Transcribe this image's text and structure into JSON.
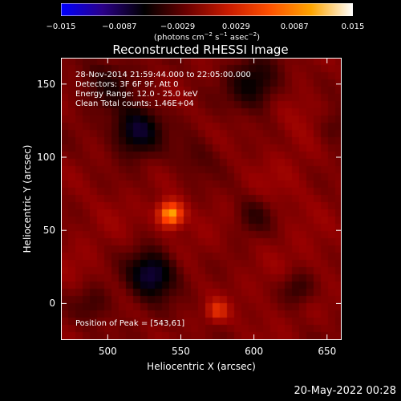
{
  "chart_data": {
    "type": "heatmap",
    "title": "Reconstructed RHESSI Image",
    "xlabel": "Heliocentric X (arcsec)",
    "ylabel": "Heliocentric Y (arcsec)",
    "xlim": [
      468,
      660
    ],
    "ylim": [
      -25,
      168
    ],
    "xticks": [
      500,
      550,
      600,
      650
    ],
    "yticks": [
      0,
      50,
      100,
      150
    ],
    "colorbar": {
      "ticks": [
        "−0.015",
        "−0.0087",
        "−0.0029",
        "0.0029",
        "0.0087",
        "0.015"
      ],
      "range": [
        -0.015,
        0.015
      ],
      "colors": [
        "#0000ff",
        "#2a0088",
        "#000000",
        "#6a0000",
        "#c81a00",
        "#ff5000",
        "#ffa500",
        "#ffffff"
      ]
    },
    "annotations": {
      "time": "28‐Nov‐2014 21:59:44.000 to 22:05:00.000",
      "detectors": "Detectors: 3F 6F 9F, Att 0",
      "energy": "Energy Range: 12.0 ‐ 25.0 keV",
      "clean": "Clean    Total counts: 1.46E+04",
      "peak": "Position of Peak = [543,61]"
    },
    "peak": {
      "x": 543,
      "y": 61
    },
    "features": [
      {
        "kind": "bright",
        "x": 543,
        "y": 61,
        "value": 0.015
      },
      {
        "kind": "bright",
        "x": 575,
        "y": -5,
        "value": 0.0095
      },
      {
        "kind": "dark",
        "x": 530,
        "y": 20,
        "value": -0.0035
      },
      {
        "kind": "dark",
        "x": 520,
        "y": 118,
        "value": -0.003
      },
      {
        "kind": "dark",
        "x": 600,
        "y": 150,
        "value": -0.0015
      }
    ]
  },
  "footer": {
    "date": "20‐May‐2022 00:28"
  }
}
